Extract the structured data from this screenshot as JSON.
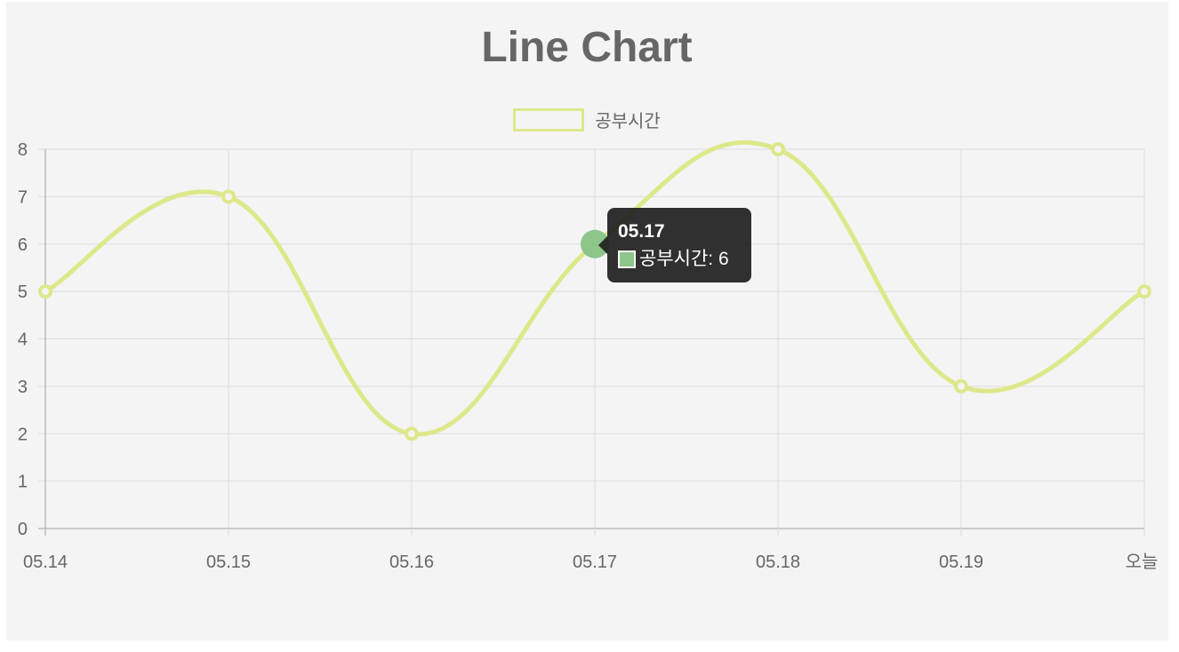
{
  "chart_data": {
    "type": "line",
    "title": "Line Chart",
    "categories": [
      "05.14",
      "05.15",
      "05.16",
      "05.17",
      "05.18",
      "05.19",
      "오늘"
    ],
    "series": [
      {
        "name": "공부시간",
        "values": [
          5,
          7,
          2,
          6,
          8,
          3,
          5
        ],
        "color": "#dde88a"
      }
    ],
    "ylim": [
      0,
      8
    ],
    "yticks": [
      "0",
      "1",
      "2",
      "3",
      "4",
      "5",
      "6",
      "7",
      "8"
    ],
    "grid": true,
    "legend_position": "top-center",
    "hover_color": "#8dc58b",
    "tooltip": {
      "title": "05.17",
      "label": "공부시간: 6"
    }
  }
}
